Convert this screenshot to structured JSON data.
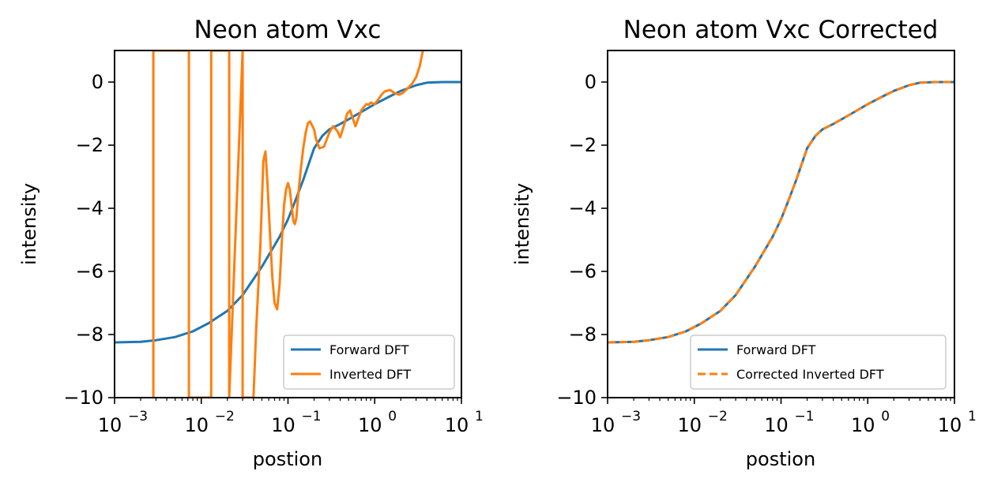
{
  "chart_data": [
    {
      "type": "line",
      "title": "Neon atom Vxc",
      "xlabel": "postion",
      "ylabel": "intensity",
      "xscale": "log",
      "xlim": [
        0.001,
        10
      ],
      "ylim": [
        -10,
        1
      ],
      "xticks": [
        {
          "base": "10",
          "exp": "−3"
        },
        {
          "base": "10",
          "exp": "−2"
        },
        {
          "base": "10",
          "exp": "−1"
        },
        {
          "base": "10",
          "exp": "0"
        },
        {
          "base": "10",
          "exp": "1"
        }
      ],
      "yticks": [
        "0",
        "−2",
        "−4",
        "−6",
        "−8",
        "−10"
      ],
      "legend_position": "lower-right",
      "series": [
        {
          "name": "Forward DFT",
          "color": "#1f77b4",
          "style": "solid",
          "x": [
            0.001,
            0.002,
            0.003,
            0.005,
            0.008,
            0.012,
            0.02,
            0.03,
            0.05,
            0.08,
            0.1,
            0.12,
            0.15,
            0.2,
            0.25,
            0.3,
            0.4,
            0.5,
            0.7,
            1.0,
            1.5,
            2.0,
            3.0,
            4.0,
            6.0,
            10.0
          ],
          "y": [
            -8.25,
            -8.23,
            -8.18,
            -8.08,
            -7.9,
            -7.65,
            -7.25,
            -6.75,
            -5.85,
            -4.9,
            -4.35,
            -3.8,
            -3.1,
            -2.1,
            -1.7,
            -1.5,
            -1.33,
            -1.18,
            -0.95,
            -0.7,
            -0.45,
            -0.28,
            -0.1,
            -0.02,
            0,
            0
          ]
        },
        {
          "name": "Inverted DFT",
          "color": "#ff7f0e",
          "style": "solid",
          "x": [
            0.0028,
            0.0028,
            0.0072,
            0.0072,
            0.013,
            0.013,
            0.021,
            0.021,
            0.03,
            0.03,
            0.04,
            0.043,
            0.048,
            0.052,
            0.055,
            0.058,
            0.062,
            0.066,
            0.07,
            0.075,
            0.08,
            0.085,
            0.09,
            0.095,
            0.1,
            0.105,
            0.11,
            0.115,
            0.12,
            0.125,
            0.13,
            0.14,
            0.15,
            0.16,
            0.17,
            0.18,
            0.2,
            0.21,
            0.23,
            0.26,
            0.3,
            0.33,
            0.37,
            0.4,
            0.45,
            0.48,
            0.52,
            0.55,
            0.6,
            0.7,
            0.8,
            0.85,
            0.9,
            1.0,
            1.1,
            1.2,
            1.3,
            1.5,
            1.7,
            1.9,
            2.1,
            2.4,
            2.7,
            3.0,
            3.3,
            3.6
          ],
          "y": [
            -10,
            1,
            1,
            -10,
            -10,
            1,
            1,
            -10,
            1,
            -10,
            -10,
            -7.8,
            -5.2,
            -2.5,
            -2.2,
            -3.2,
            -4.8,
            -6.2,
            -7.0,
            -7.2,
            -6.4,
            -5.0,
            -3.9,
            -3.4,
            -3.2,
            -3.4,
            -3.9,
            -4.4,
            -4.5,
            -4.3,
            -3.7,
            -2.8,
            -2.1,
            -1.6,
            -1.3,
            -1.25,
            -1.5,
            -1.8,
            -2.1,
            -2.05,
            -1.6,
            -1.4,
            -1.55,
            -1.75,
            -1.3,
            -1.0,
            -0.9,
            -1.1,
            -1.4,
            -0.9,
            -0.7,
            -0.72,
            -0.65,
            -0.7,
            -0.55,
            -0.4,
            -0.3,
            -0.25,
            -0.35,
            -0.4,
            -0.35,
            -0.2,
            -0.05,
            0.15,
            0.5,
            1.0
          ]
        }
      ]
    },
    {
      "type": "line",
      "title": "Neon atom Vxc Corrected",
      "xlabel": "postion",
      "ylabel": "intensity",
      "xscale": "log",
      "xlim": [
        0.001,
        10
      ],
      "ylim": [
        -10,
        1
      ],
      "xticks": [
        {
          "base": "10",
          "exp": "−3"
        },
        {
          "base": "10",
          "exp": "−2"
        },
        {
          "base": "10",
          "exp": "−1"
        },
        {
          "base": "10",
          "exp": "0"
        },
        {
          "base": "10",
          "exp": "1"
        }
      ],
      "yticks": [
        "0",
        "−2",
        "−4",
        "−6",
        "−8",
        "−10"
      ],
      "legend_position": "lower-right",
      "series": [
        {
          "name": "Forward DFT",
          "color": "#1f77b4",
          "style": "solid",
          "x": [
            0.001,
            0.002,
            0.003,
            0.005,
            0.008,
            0.012,
            0.02,
            0.03,
            0.05,
            0.08,
            0.1,
            0.12,
            0.15,
            0.2,
            0.25,
            0.3,
            0.4,
            0.5,
            0.7,
            1.0,
            1.5,
            2.0,
            3.0,
            4.0,
            6.0,
            10.0
          ],
          "y": [
            -8.25,
            -8.23,
            -8.18,
            -8.08,
            -7.9,
            -7.65,
            -7.25,
            -6.75,
            -5.85,
            -4.9,
            -4.35,
            -3.8,
            -3.1,
            -2.1,
            -1.7,
            -1.5,
            -1.33,
            -1.18,
            -0.95,
            -0.7,
            -0.45,
            -0.28,
            -0.1,
            -0.02,
            0,
            0
          ]
        },
        {
          "name": "Corrected Inverted DFT",
          "color": "#ff7f0e",
          "style": "dashed",
          "x": [
            0.001,
            0.002,
            0.003,
            0.005,
            0.008,
            0.012,
            0.02,
            0.03,
            0.05,
            0.08,
            0.1,
            0.12,
            0.15,
            0.2,
            0.25,
            0.3,
            0.4,
            0.5,
            0.7,
            1.0,
            1.5,
            2.0,
            3.0,
            4.0,
            6.0,
            10.0
          ],
          "y": [
            -8.25,
            -8.23,
            -8.18,
            -8.08,
            -7.9,
            -7.65,
            -7.25,
            -6.75,
            -5.85,
            -4.9,
            -4.35,
            -3.8,
            -3.1,
            -2.1,
            -1.7,
            -1.5,
            -1.33,
            -1.18,
            -0.95,
            -0.7,
            -0.45,
            -0.28,
            -0.1,
            -0.02,
            0,
            0
          ]
        }
      ]
    }
  ]
}
